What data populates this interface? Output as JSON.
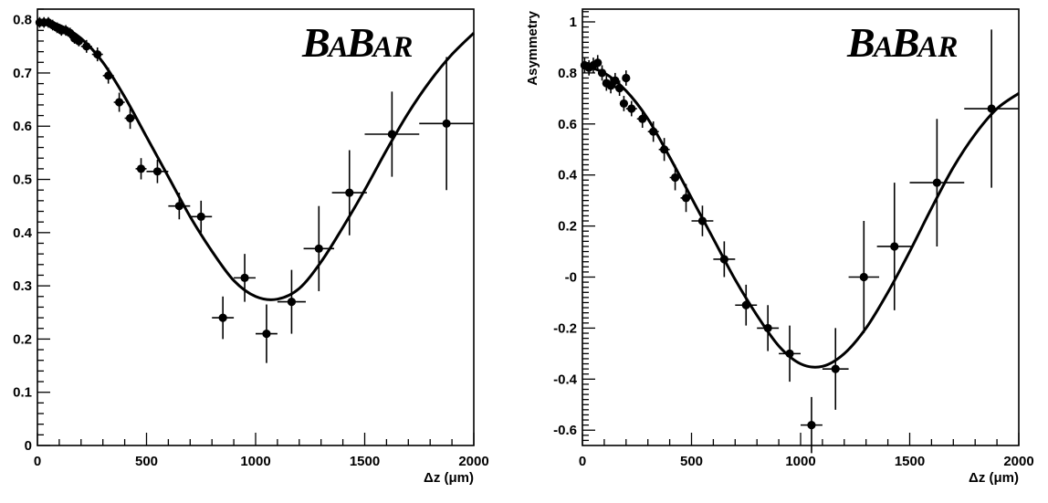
{
  "chart_data": [
    {
      "type": "scatter",
      "logo": "BABAR",
      "xlabel": "Δz (μm)",
      "ylabel": "",
      "xlim": [
        0,
        2000
      ],
      "ylim": [
        0,
        0.82
      ],
      "x_ticks": [
        0,
        500,
        1000,
        1500,
        2000
      ],
      "x_tick_labels": [
        "0",
        "500",
        "1000",
        "1500",
        "2000"
      ],
      "y_ticks": [
        0,
        0.1,
        0.2,
        0.3,
        0.4,
        0.5,
        0.6,
        0.7,
        0.8
      ],
      "y_tick_labels": [
        "0",
        "0.1",
        "0.2",
        "0.3",
        "0.4",
        "0.5",
        "0.6",
        "0.7",
        "0.8"
      ],
      "grid": false,
      "series": [
        {
          "points": [
            {
              "x": 10,
              "y": 0.795,
              "xerr": 10,
              "yerr": 0.01
            },
            {
              "x": 30,
              "y": 0.795,
              "xerr": 10,
              "yerr": 0.01
            },
            {
              "x": 50,
              "y": 0.795,
              "xerr": 10,
              "yerr": 0.01
            },
            {
              "x": 70,
              "y": 0.79,
              "xerr": 10,
              "yerr": 0.01
            },
            {
              "x": 90,
              "y": 0.785,
              "xerr": 10,
              "yerr": 0.01
            },
            {
              "x": 110,
              "y": 0.78,
              "xerr": 10,
              "yerr": 0.01
            },
            {
              "x": 130,
              "y": 0.78,
              "xerr": 10,
              "yerr": 0.01
            },
            {
              "x": 150,
              "y": 0.775,
              "xerr": 10,
              "yerr": 0.01
            },
            {
              "x": 170,
              "y": 0.765,
              "xerr": 10,
              "yerr": 0.01
            },
            {
              "x": 190,
              "y": 0.76,
              "xerr": 10,
              "yerr": 0.01
            },
            {
              "x": 225,
              "y": 0.75,
              "xerr": 25,
              "yerr": 0.012
            },
            {
              "x": 275,
              "y": 0.735,
              "xerr": 25,
              "yerr": 0.013
            },
            {
              "x": 325,
              "y": 0.695,
              "xerr": 25,
              "yerr": 0.015
            },
            {
              "x": 375,
              "y": 0.645,
              "xerr": 25,
              "yerr": 0.018
            },
            {
              "x": 425,
              "y": 0.615,
              "xerr": 25,
              "yerr": 0.02
            },
            {
              "x": 475,
              "y": 0.52,
              "xerr": 25,
              "yerr": 0.02
            },
            {
              "x": 550,
              "y": 0.515,
              "xerr": 50,
              "yerr": 0.022
            },
            {
              "x": 650,
              "y": 0.45,
              "xerr": 50,
              "yerr": 0.025
            },
            {
              "x": 750,
              "y": 0.43,
              "xerr": 50,
              "yerr": 0.03
            },
            {
              "x": 850,
              "y": 0.24,
              "xerr": 50,
              "yerr": 0.04
            },
            {
              "x": 950,
              "y": 0.315,
              "xerr": 50,
              "yerr": 0.045
            },
            {
              "x": 1050,
              "y": 0.21,
              "xerr": 50,
              "yerr": 0.055
            },
            {
              "x": 1165,
              "y": 0.27,
              "xerr": 65,
              "yerr": 0.06
            },
            {
              "x": 1290,
              "y": 0.37,
              "xerr": 70,
              "yerr": 0.08
            },
            {
              "x": 1430,
              "y": 0.475,
              "xerr": 80,
              "yerr": 0.08
            },
            {
              "x": 1625,
              "y": 0.585,
              "xerr": 125,
              "yerr": 0.08
            },
            {
              "x": 1875,
              "y": 0.605,
              "xerr": 125,
              "yerr": 0.125
            }
          ],
          "fit_curve": {
            "x": [
              0,
              100,
              200,
              300,
              400,
              500,
              600,
              700,
              800,
              900,
              1000,
              1100,
              1200,
              1300,
              1400,
              1500,
              1600,
              1700,
              1800,
              1900,
              2000
            ],
            "y": [
              0.8,
              0.79,
              0.765,
              0.72,
              0.655,
              0.58,
              0.505,
              0.43,
              0.365,
              0.31,
              0.28,
              0.275,
              0.295,
              0.345,
              0.41,
              0.48,
              0.555,
              0.625,
              0.685,
              0.735,
              0.775
            ]
          }
        }
      ]
    },
    {
      "type": "scatter",
      "logo": "BABAR",
      "xlabel": "Δz (μm)",
      "ylabel": "Asymmetry",
      "xlim": [
        0,
        2000
      ],
      "ylim": [
        -0.66,
        1.05
      ],
      "x_ticks": [
        0,
        500,
        1000,
        1500,
        2000
      ],
      "x_tick_labels": [
        "0",
        "500",
        "1000",
        "1500",
        "2000"
      ],
      "y_ticks": [
        1,
        0.8,
        0.6,
        0.4,
        0.2,
        0,
        -0.2,
        -0.4,
        -0.6
      ],
      "y_tick_labels": [
        "1",
        "0.8",
        "0.6",
        "0.4",
        "0.2",
        "-0",
        "-0.2",
        "-0.4",
        "-0.6"
      ],
      "grid": false,
      "series": [
        {
          "points": [
            {
              "x": 10,
              "y": 0.83,
              "xerr": 10,
              "yerr": 0.03
            },
            {
              "x": 30,
              "y": 0.82,
              "xerr": 10,
              "yerr": 0.03
            },
            {
              "x": 50,
              "y": 0.83,
              "xerr": 10,
              "yerr": 0.03
            },
            {
              "x": 70,
              "y": 0.84,
              "xerr": 10,
              "yerr": 0.03
            },
            {
              "x": 90,
              "y": 0.8,
              "xerr": 10,
              "yerr": 0.03
            },
            {
              "x": 110,
              "y": 0.76,
              "xerr": 10,
              "yerr": 0.03
            },
            {
              "x": 130,
              "y": 0.75,
              "xerr": 10,
              "yerr": 0.03
            },
            {
              "x": 150,
              "y": 0.77,
              "xerr": 10,
              "yerr": 0.03
            },
            {
              "x": 170,
              "y": 0.74,
              "xerr": 10,
              "yerr": 0.03
            },
            {
              "x": 190,
              "y": 0.68,
              "xerr": 10,
              "yerr": 0.03
            },
            {
              "x": 200,
              "y": 0.78,
              "xerr": 10,
              "yerr": 0.03
            },
            {
              "x": 225,
              "y": 0.66,
              "xerr": 25,
              "yerr": 0.03
            },
            {
              "x": 275,
              "y": 0.62,
              "xerr": 25,
              "yerr": 0.035
            },
            {
              "x": 325,
              "y": 0.57,
              "xerr": 25,
              "yerr": 0.04
            },
            {
              "x": 375,
              "y": 0.5,
              "xerr": 25,
              "yerr": 0.045
            },
            {
              "x": 425,
              "y": 0.39,
              "xerr": 25,
              "yerr": 0.05
            },
            {
              "x": 475,
              "y": 0.31,
              "xerr": 25,
              "yerr": 0.055
            },
            {
              "x": 550,
              "y": 0.22,
              "xerr": 50,
              "yerr": 0.06
            },
            {
              "x": 650,
              "y": 0.07,
              "xerr": 50,
              "yerr": 0.07
            },
            {
              "x": 750,
              "y": -0.11,
              "xerr": 50,
              "yerr": 0.08
            },
            {
              "x": 850,
              "y": -0.2,
              "xerr": 50,
              "yerr": 0.09
            },
            {
              "x": 950,
              "y": -0.3,
              "xerr": 50,
              "yerr": 0.11
            },
            {
              "x": 1050,
              "y": -0.58,
              "xerr": 50,
              "yerr": 0.11
            },
            {
              "x": 1160,
              "y": -0.36,
              "xerr": 60,
              "yerr": 0.16
            },
            {
              "x": 1290,
              "y": 0.0,
              "xerr": 70,
              "yerr": 0.22
            },
            {
              "x": 1430,
              "y": 0.12,
              "xerr": 80,
              "yerr": 0.25
            },
            {
              "x": 1625,
              "y": 0.37,
              "xerr": 125,
              "yerr": 0.25
            },
            {
              "x": 1875,
              "y": 0.66,
              "xerr": 125,
              "yerr": 0.31
            }
          ],
          "fit_curve": {
            "x": [
              0,
              100,
              200,
              300,
              400,
              500,
              600,
              700,
              800,
              900,
              1000,
              1100,
              1200,
              1300,
              1400,
              1500,
              1600,
              1700,
              1800,
              1900,
              2000
            ],
            "y": [
              0.83,
              0.8,
              0.73,
              0.62,
              0.47,
              0.31,
              0.15,
              -0.01,
              -0.15,
              -0.27,
              -0.34,
              -0.35,
              -0.3,
              -0.2,
              -0.06,
              0.1,
              0.27,
              0.43,
              0.56,
              0.66,
              0.72
            ]
          }
        }
      ]
    }
  ]
}
